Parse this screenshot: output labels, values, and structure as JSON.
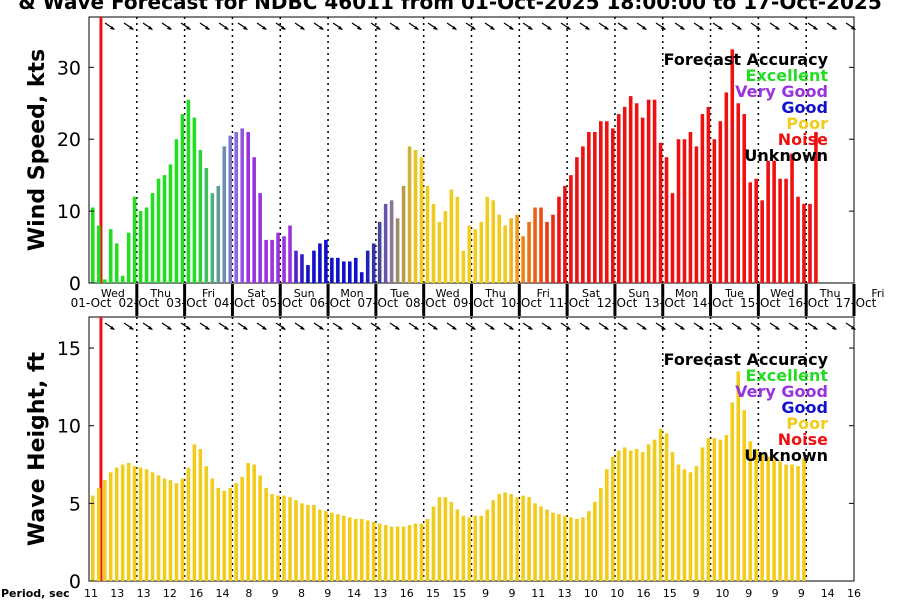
{
  "title": "& Wave Forecast for NDBC 46011 from 01-Oct-2025 18:00:00 to 17-Oct-2025",
  "legend": {
    "title": "Forecast Accuracy",
    "items": [
      {
        "label": "Excellent",
        "color": "#22dd22"
      },
      {
        "label": "Very Good",
        "color": "#9933dd"
      },
      {
        "label": "Good",
        "color": "#1111cc"
      },
      {
        "label": "Poor",
        "color": "#f2cc1a"
      },
      {
        "label": "Noise",
        "color": "#ee1111"
      },
      {
        "label": "Unknown",
        "color": "#000000"
      }
    ]
  },
  "period_label": "Period, sec",
  "days": [
    {
      "dow": "Wed",
      "date": "01-Oct"
    },
    {
      "dow": "Thu",
      "date": "02-Oct"
    },
    {
      "dow": "Fri",
      "date": "03-Oct"
    },
    {
      "dow": "Sat",
      "date": "04-Oct"
    },
    {
      "dow": "Sun",
      "date": "05-Oct"
    },
    {
      "dow": "Mon",
      "date": "06-Oct"
    },
    {
      "dow": "Tue",
      "date": "07-Oct"
    },
    {
      "dow": "Wed",
      "date": "08-Oct"
    },
    {
      "dow": "Thu",
      "date": "09-Oct"
    },
    {
      "dow": "Fri",
      "date": "10-Oct"
    },
    {
      "dow": "Sat",
      "date": "11-Oct"
    },
    {
      "dow": "Sun",
      "date": "12-Oct"
    },
    {
      "dow": "Mon",
      "date": "13-Oct"
    },
    {
      "dow": "Tue",
      "date": "14-Oct"
    },
    {
      "dow": "Wed",
      "date": "15-Oct"
    },
    {
      "dow": "Thu",
      "date": "16-Oct"
    },
    {
      "dow": "Fri",
      "date": "17-Oct"
    }
  ],
  "period_ticks": [
    "11",
    "13",
    "13",
    "12",
    "16",
    "14",
    "8",
    "9",
    "8",
    "9",
    "14",
    "13",
    "16",
    "15",
    "15",
    "9",
    "9",
    "11",
    "13",
    "10",
    "10",
    "16",
    "15",
    "9",
    "10",
    "9",
    "9",
    "9",
    "14",
    "16"
  ],
  "chart_data": [
    {
      "type": "bar",
      "title": "",
      "ylabel": "Wind Speed, kts",
      "ylim": [
        0,
        37
      ],
      "yticks": [
        0,
        10,
        20,
        30
      ],
      "xlim": [
        0,
        16
      ],
      "now_marker": 0.25,
      "x_start": 0.0,
      "x_step": 0.125,
      "values": [
        10.5,
        8,
        0.5,
        7.5,
        5.5,
        1,
        7,
        12,
        10,
        10.5,
        12.5,
        14.5,
        15,
        16.5,
        20,
        23.5,
        25.5,
        23,
        18.5,
        16,
        12.5,
        13.5,
        19,
        20.5,
        21,
        21.5,
        21,
        17.5,
        12.5,
        6,
        6,
        7,
        6.5,
        8,
        4.5,
        4,
        2.5,
        4.5,
        5.5,
        6,
        3.5,
        3.5,
        3,
        3,
        3.5,
        1.5,
        4.5,
        5.5,
        8.5,
        11,
        11.5,
        9,
        13.5,
        19,
        18.5,
        17.5,
        13.5,
        11,
        8.5,
        10,
        13,
        12,
        4.5,
        8,
        7.5,
        8.5,
        12,
        11.5,
        9.5,
        8,
        9,
        9.5,
        6.5,
        8.5,
        10.5,
        10.5,
        8.5,
        9.5,
        12,
        13.5,
        15,
        17.5,
        19,
        21,
        21,
        22.5,
        22.5,
        21.5,
        23.5,
        24.5,
        26,
        25,
        23,
        25.5,
        25.5,
        19.5,
        17.5,
        12.5,
        20,
        20,
        21,
        19,
        23.5,
        24.5,
        20,
        22.5,
        26.5,
        32.5,
        25,
        23.5,
        14,
        14.5,
        11.5,
        17,
        17,
        14.5,
        14.5,
        18,
        12,
        11,
        11,
        21
      ],
      "colors": [
        "#22dd22",
        "#22dd22",
        "#22dd22",
        "#22dd22",
        "#22dd22",
        "#22dd22",
        "#22dd22",
        "#22dd22",
        "#22dd22",
        "#22dd22",
        "#22dd22",
        "#22dd22",
        "#22dd22",
        "#22dd22",
        "#22dd22",
        "#22dd22",
        "#22dd22",
        "#22dd22",
        "#2fcf40",
        "#3ec060",
        "#4eb07d",
        "#5f9c9c",
        "#6d8cb5",
        "#7b7acb",
        "#8a68dd",
        "#9355e0",
        "#9933dd",
        "#9933dd",
        "#9933dd",
        "#9933dd",
        "#9933dd",
        "#9933dd",
        "#9933dd",
        "#9933dd",
        "#5522cc",
        "#3318cc",
        "#1111cc",
        "#1111cc",
        "#1111cc",
        "#1111cc",
        "#1111cc",
        "#1111cc",
        "#1111cc",
        "#1111cc",
        "#1111cc",
        "#1111cc",
        "#2222bb",
        "#3333aa",
        "#444499",
        "#6655aa",
        "#887799",
        "#a08d66",
        "#b89e4c",
        "#cfb332",
        "#e6c421",
        "#f2cc1a",
        "#f2cc1a",
        "#f2cc1a",
        "#f2cc1a",
        "#f2cc1a",
        "#f2cc1a",
        "#f2cc1a",
        "#f2cc1a",
        "#f2cc1a",
        "#f2cc1a",
        "#f2cc1a",
        "#f2cc1a",
        "#f2cc1a",
        "#f2cc1a",
        "#f2cc1a",
        "#f2b31a",
        "#f09a1a",
        "#ee8418",
        "#ee7016",
        "#ee5e15",
        "#ee4c13",
        "#ee3a12",
        "#ee2811",
        "#ee1111",
        "#ee1111",
        "#ee1111",
        "#ee1111",
        "#ee1111",
        "#ee1111",
        "#ee1111",
        "#ee1111",
        "#ee1111",
        "#ee1111",
        "#ee1111",
        "#ee1111",
        "#ee1111",
        "#ee1111",
        "#ee1111",
        "#ee1111",
        "#ee1111",
        "#ee1111",
        "#ee1111",
        "#ee1111",
        "#ee1111",
        "#ee1111",
        "#ee1111",
        "#ee1111",
        "#ee1111",
        "#ee1111",
        "#ee1111",
        "#ee1111",
        "#ee1111",
        "#ee1111",
        "#ee1111",
        "#ee1111",
        "#ee1111",
        "#ee1111",
        "#ee1111",
        "#ee1111",
        "#ee1111",
        "#ee1111",
        "#ee1111",
        "#ee1111",
        "#ee1111",
        "#ee1111",
        "#ee1111",
        "#ee1111",
        "#ee1111",
        "#ee1111",
        "#ee1111"
      ]
    },
    {
      "type": "bar",
      "title": "",
      "ylabel": "Wave Height, ft",
      "ylim": [
        0,
        17
      ],
      "yticks": [
        0,
        5,
        10,
        15
      ],
      "xlim": [
        0,
        16
      ],
      "now_marker": 0.25,
      "x_start": 0.0,
      "x_step": 0.125,
      "bar_color": "#f2cc1a",
      "values": [
        5.5,
        6,
        6.5,
        7,
        7.3,
        7.5,
        7.6,
        7.4,
        7.3,
        7.2,
        7.0,
        6.8,
        6.6,
        6.5,
        6.3,
        6.6,
        7.3,
        8.8,
        8.5,
        7.4,
        6.6,
        6.0,
        5.8,
        6.0,
        6.3,
        6.7,
        7.6,
        7.5,
        6.8,
        6.0,
        5.6,
        5.5,
        5.5,
        5.4,
        5.2,
        5.0,
        4.9,
        4.9,
        4.6,
        4.5,
        4.4,
        4.3,
        4.2,
        4.1,
        4.0,
        4.0,
        3.9,
        3.8,
        3.7,
        3.6,
        3.5,
        3.5,
        3.5,
        3.6,
        3.7,
        3.7,
        4.0,
        4.8,
        5.4,
        5.4,
        5.1,
        4.6,
        4.2,
        4.1,
        4.2,
        4.2,
        4.6,
        5.2,
        5.6,
        5.7,
        5.6,
        5.4,
        5.5,
        5.4,
        5.0,
        4.8,
        4.6,
        4.4,
        4.3,
        4.2,
        4.1,
        4.0,
        4.1,
        4.5,
        5.1,
        6.0,
        7.2,
        8.0,
        8.4,
        8.6,
        8.4,
        8.5,
        8.3,
        8.8,
        9.1,
        9.8,
        9.5,
        8.3,
        7.5,
        7.2,
        7.0,
        7.4,
        8.6,
        9.2,
        9.2,
        9.1,
        9.4,
        11.5,
        13.5,
        11.0,
        9.0,
        8.5,
        8.2,
        8.0,
        7.8,
        7.7,
        7.5,
        7.5,
        7.4,
        7.9
      ]
    }
  ]
}
